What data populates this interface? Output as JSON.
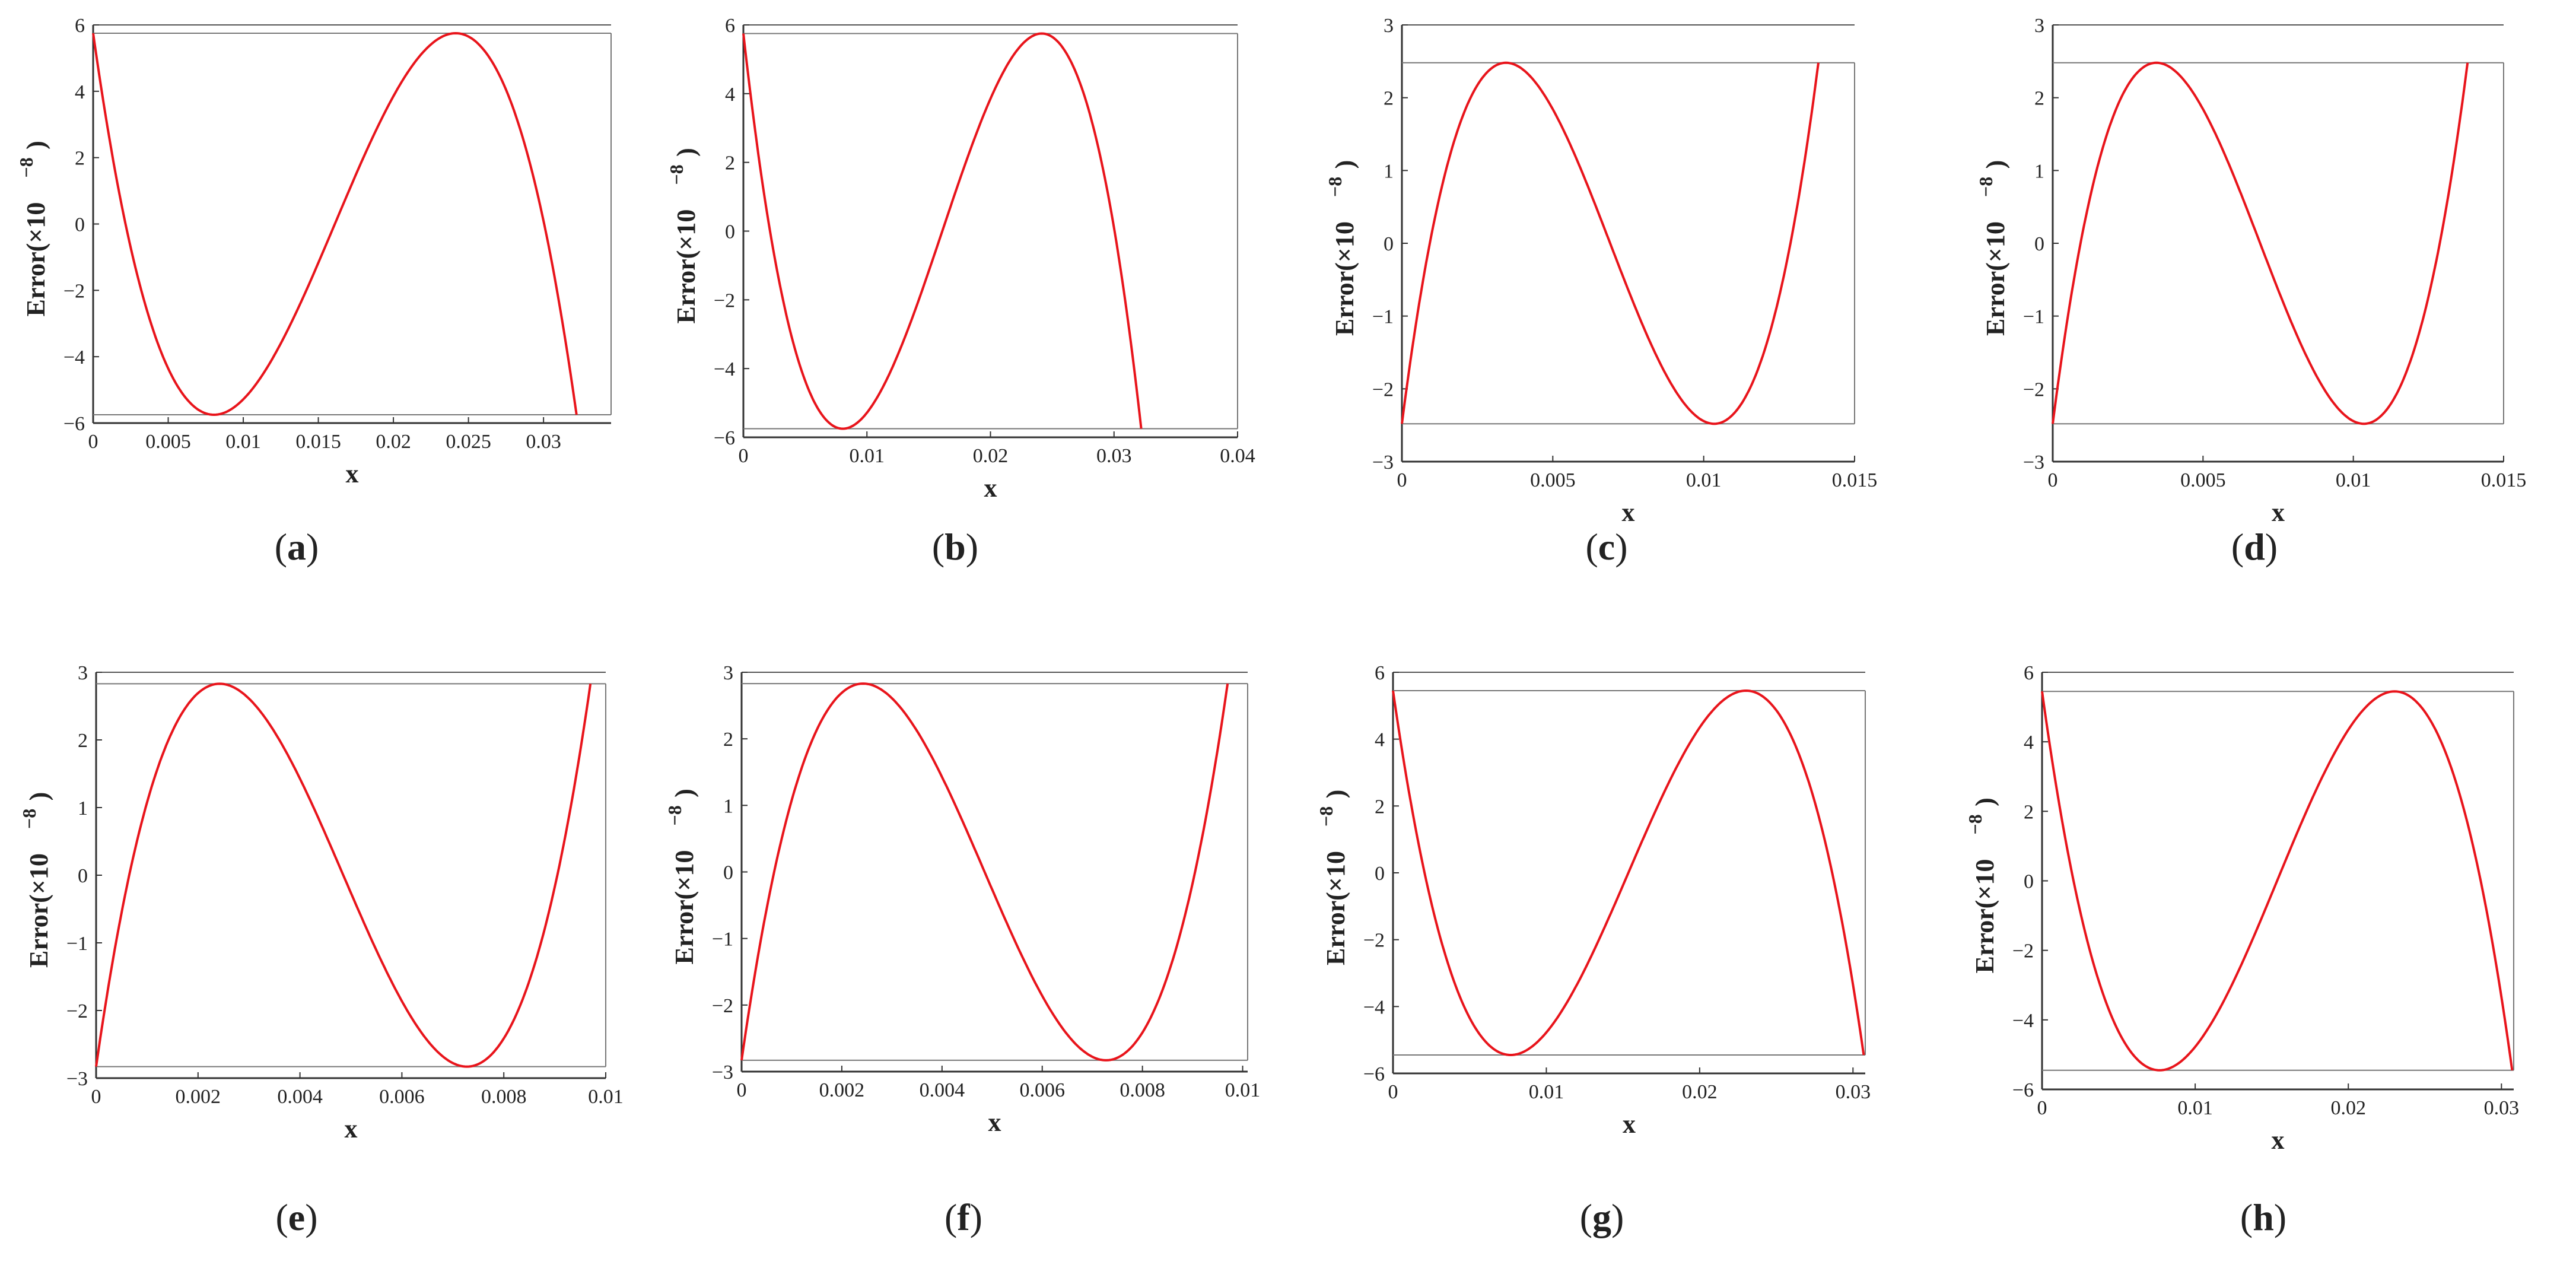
{
  "figure": {
    "panel_count": 8
  },
  "chart_data": [
    {
      "type": "line",
      "id": "a",
      "caption": "a",
      "xlabel": "x",
      "ylabel": "Error(×10",
      "ylabel_exp": "−8",
      "ylabel_close": ")",
      "xlim": [
        0,
        0.0345
      ],
      "ylim": [
        -6,
        6
      ],
      "xticks": [
        0,
        0.005,
        0.01,
        0.015,
        0.02,
        0.025,
        0.03
      ],
      "xtick_labels": [
        "0",
        "0.005",
        "0.01",
        "0.015",
        "0.02",
        "0.025",
        "0.03"
      ],
      "yticks": [
        -6,
        -4,
        -2,
        0,
        2,
        4,
        6
      ],
      "ytick_labels": [
        "−6",
        "−4",
        "−2",
        "0",
        "2",
        "4",
        "6"
      ],
      "curve_x_end": 0.0322,
      "amplitude": 5.75,
      "phase": "start-low",
      "bound_lines": [
        5.75,
        -5.75
      ],
      "series": [
        {
          "name": "error",
          "color": "#e8141b"
        }
      ]
    },
    {
      "type": "line",
      "id": "b",
      "caption": "b",
      "xlabel": "x",
      "ylabel": "Error(×10",
      "ylabel_exp": "−8",
      "ylabel_close": ")",
      "xlim": [
        0,
        0.04
      ],
      "ylim": [
        -6,
        6
      ],
      "xticks": [
        0,
        0.01,
        0.02,
        0.03,
        0.04
      ],
      "xtick_labels": [
        "0",
        "0.01",
        "0.02",
        "0.03",
        "0.04"
      ],
      "yticks": [
        -6,
        -4,
        -2,
        0,
        2,
        4,
        6
      ],
      "ytick_labels": [
        "−6",
        "−4",
        "−2",
        "0",
        "2",
        "4",
        "6"
      ],
      "curve_x_end": 0.0322,
      "amplitude": 5.75,
      "phase": "start-low",
      "bound_lines": [
        5.75,
        -5.75
      ],
      "series": [
        {
          "name": "error",
          "color": "#e8141b"
        }
      ]
    },
    {
      "type": "line",
      "id": "c",
      "caption": "c",
      "xlabel": "x",
      "ylabel": "Error(×10",
      "ylabel_exp": "−8",
      "ylabel_close": ")",
      "xlim": [
        0,
        0.015
      ],
      "ylim": [
        -3,
        3
      ],
      "xticks": [
        0,
        0.005,
        0.01,
        0.015
      ],
      "xtick_labels": [
        "0",
        "0.005",
        "0.01",
        "0.015"
      ],
      "yticks": [
        -3,
        -2,
        -1,
        0,
        1,
        2,
        3
      ],
      "ytick_labels": [
        "−3",
        "−2",
        "−1",
        "0",
        "1",
        "2",
        "3"
      ],
      "curve_x_end": 0.0138,
      "amplitude": 2.48,
      "phase": "start-high",
      "bound_lines": [
        2.48,
        -2.48
      ],
      "series": [
        {
          "name": "error",
          "color": "#e8141b"
        }
      ]
    },
    {
      "type": "line",
      "id": "d",
      "caption": "d",
      "xlabel": "x",
      "ylabel": "Error(×10",
      "ylabel_exp": "−8",
      "ylabel_close": ")",
      "xlim": [
        0,
        0.015
      ],
      "ylim": [
        -3,
        3
      ],
      "xticks": [
        0,
        0.005,
        0.01,
        0.015
      ],
      "xtick_labels": [
        "0",
        "0.005",
        "0.01",
        "0.015"
      ],
      "yticks": [
        -3,
        -2,
        -1,
        0,
        1,
        2,
        3
      ],
      "ytick_labels": [
        "−3",
        "−2",
        "−1",
        "0",
        "1",
        "2",
        "3"
      ],
      "curve_x_end": 0.0138,
      "amplitude": 2.48,
      "phase": "start-high",
      "bound_lines": [
        2.48,
        -2.48
      ],
      "series": [
        {
          "name": "error",
          "color": "#e8141b"
        }
      ]
    },
    {
      "type": "line",
      "id": "e",
      "caption": "e",
      "xlabel": "x",
      "ylabel": "Error(×10",
      "ylabel_exp": "−8",
      "ylabel_close": ")",
      "xlim": [
        0,
        0.01
      ],
      "ylim": [
        -3,
        3
      ],
      "xticks": [
        0,
        0.002,
        0.004,
        0.006,
        0.008,
        0.01
      ],
      "xtick_labels": [
        "0",
        "0.002",
        "0.004",
        "0.006",
        "0.008",
        "0.01"
      ],
      "yticks": [
        -3,
        -2,
        -1,
        0,
        1,
        2,
        3
      ],
      "ytick_labels": [
        "−3",
        "−2",
        "−1",
        "0",
        "1",
        "2",
        "3"
      ],
      "curve_x_end": 0.0097,
      "amplitude": 2.83,
      "phase": "start-high",
      "bound_lines": [
        2.83,
        -2.83
      ],
      "series": [
        {
          "name": "error",
          "color": "#e8141b"
        }
      ]
    },
    {
      "type": "line",
      "id": "f",
      "caption": "f",
      "xlabel": "x",
      "ylabel": "Error(×10",
      "ylabel_exp": "−8",
      "ylabel_close": ")",
      "xlim": [
        0,
        0.0101
      ],
      "ylim": [
        -3,
        3
      ],
      "xticks": [
        0,
        0.002,
        0.004,
        0.006,
        0.008,
        0.01
      ],
      "xtick_labels": [
        "0",
        "0.002",
        "0.004",
        "0.006",
        "0.008",
        "0.01"
      ],
      "yticks": [
        -3,
        -2,
        -1,
        0,
        1,
        2,
        3
      ],
      "ytick_labels": [
        "−3",
        "−2",
        "−1",
        "0",
        "1",
        "2",
        "3"
      ],
      "curve_x_end": 0.0097,
      "amplitude": 2.83,
      "phase": "start-high",
      "bound_lines": [
        2.83,
        -2.83
      ],
      "series": [
        {
          "name": "error",
          "color": "#e8141b"
        }
      ]
    },
    {
      "type": "line",
      "id": "g",
      "caption": "g",
      "xlabel": "x",
      "ylabel": "Error(×10",
      "ylabel_exp": "−8",
      "ylabel_close": ")",
      "xlim": [
        0,
        0.0308
      ],
      "ylim": [
        -6,
        6
      ],
      "xticks": [
        0,
        0.01,
        0.02,
        0.03
      ],
      "xtick_labels": [
        "0",
        "0.01",
        "0.02",
        "0.03"
      ],
      "yticks": [
        -6,
        -4,
        -2,
        0,
        2,
        4,
        6
      ],
      "ytick_labels": [
        "−6",
        "−4",
        "−2",
        "0",
        "2",
        "4",
        "6"
      ],
      "curve_x_end": 0.0307,
      "amplitude": 5.45,
      "phase": "start-low",
      "bound_lines": [
        5.45,
        -5.45
      ],
      "series": [
        {
          "name": "error",
          "color": "#e8141b"
        }
      ]
    },
    {
      "type": "line",
      "id": "h",
      "caption": "h",
      "xlabel": "x",
      "ylabel": "Error(×10",
      "ylabel_exp": "−8",
      "ylabel_close": ")",
      "xlim": [
        0,
        0.0308
      ],
      "ylim": [
        -6,
        6
      ],
      "xticks": [
        0,
        0.01,
        0.02,
        0.03
      ],
      "xtick_labels": [
        "0",
        "0.01",
        "0.02",
        "0.03"
      ],
      "yticks": [
        -6,
        -4,
        -2,
        0,
        2,
        4,
        6
      ],
      "ytick_labels": [
        "−6",
        "−4",
        "−2",
        "0",
        "2",
        "4",
        "6"
      ],
      "curve_x_end": 0.0307,
      "amplitude": 5.45,
      "phase": "start-low",
      "bound_lines": [
        5.45,
        -5.45
      ],
      "series": [
        {
          "name": "error",
          "color": "#e8141b"
        }
      ]
    }
  ]
}
